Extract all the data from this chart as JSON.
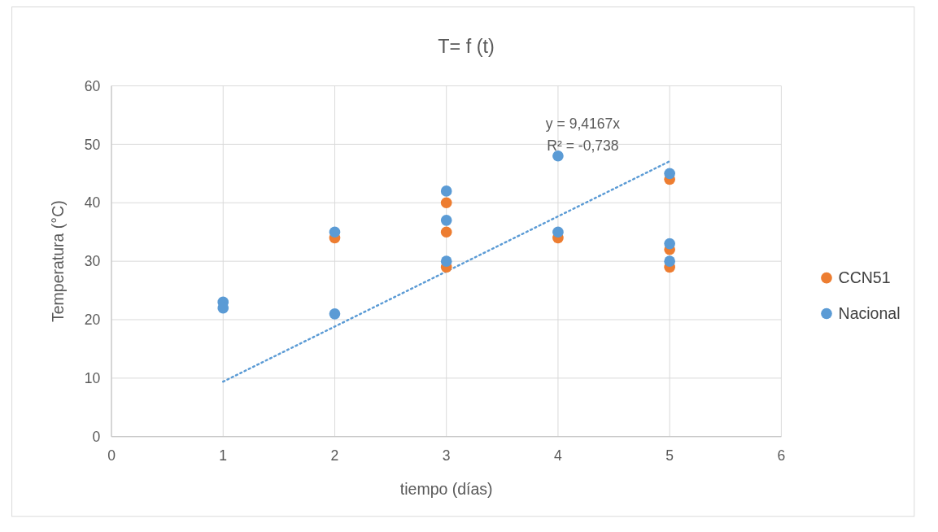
{
  "chart_data": {
    "type": "scatter",
    "title": "T= f (t)",
    "xlabel": "tiempo (días)",
    "ylabel": "Temperatura (°C)",
    "xlim": [
      0,
      6
    ],
    "xticks": [
      0,
      1,
      2,
      3,
      4,
      5,
      6
    ],
    "ylim": [
      0,
      60
    ],
    "yticks": [
      0,
      10,
      20,
      30,
      40,
      50,
      60
    ],
    "grid": true,
    "legend": "right",
    "marker": "circle",
    "series": [
      {
        "name": "CCN51",
        "color": "#ed7d31",
        "x": [
          2,
          3,
          3,
          3,
          4,
          5,
          5,
          5
        ],
        "values": [
          34,
          40,
          35,
          29,
          34,
          44,
          32,
          29
        ]
      },
      {
        "name": "Nacional",
        "color": "#5b9bd5",
        "x": [
          1,
          1,
          2,
          2,
          3,
          3,
          3,
          4,
          4,
          5,
          5,
          5
        ],
        "values": [
          23,
          22,
          35,
          21,
          42,
          37,
          30,
          48,
          35,
          45,
          33,
          30
        ]
      },
      {
        "type": "line",
        "color": "#5b9bd5",
        "line_style": "dotted",
        "marker": "none",
        "x": [
          1,
          5
        ],
        "values": [
          9.4,
          47.1
        ]
      }
    ],
    "annotations": [
      "y = 9,4167x",
      "R² = -0,738"
    ]
  }
}
